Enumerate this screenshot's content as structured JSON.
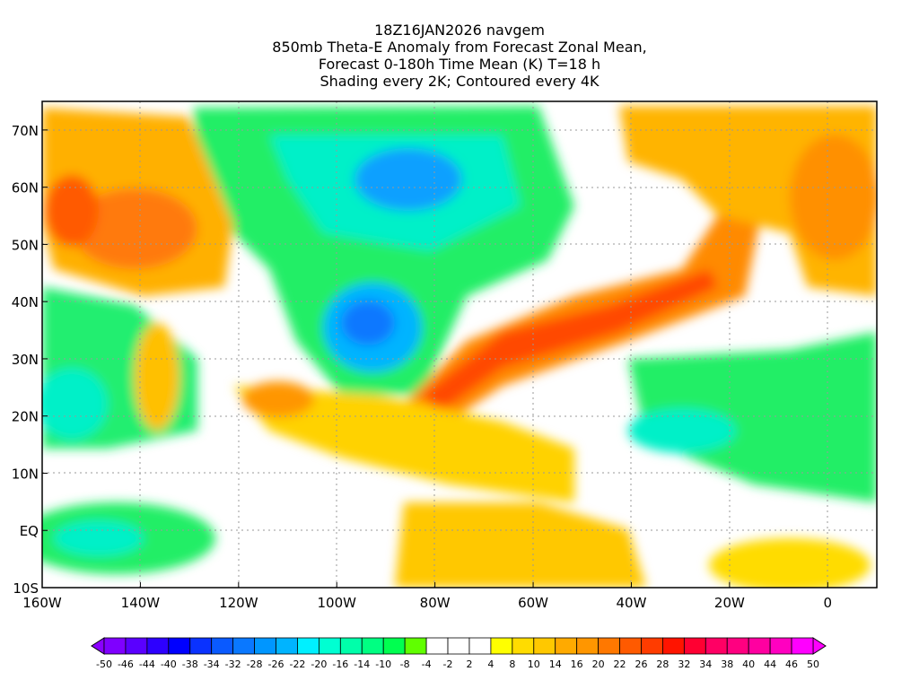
{
  "title": {
    "line1": "18Z16JAN2026 navgem",
    "line2": "850mb Theta-E Anomaly from Forecast Zonal Mean,",
    "line3": "Forecast 0-180h Time Mean (K) T=18 h",
    "line4": "Shading every 2K; Contoured every 4K"
  },
  "map": {
    "lon_range": [
      -160,
      10
    ],
    "lat_range": [
      -10,
      75
    ],
    "x_ticks": [
      {
        "lon": -160,
        "label": "160W"
      },
      {
        "lon": -140,
        "label": "140W"
      },
      {
        "lon": -120,
        "label": "120W"
      },
      {
        "lon": -100,
        "label": "100W"
      },
      {
        "lon": -80,
        "label": "80W"
      },
      {
        "lon": -60,
        "label": "60W"
      },
      {
        "lon": -40,
        "label": "40W"
      },
      {
        "lon": -20,
        "label": "20W"
      },
      {
        "lon": 0,
        "label": "0"
      }
    ],
    "y_ticks": [
      {
        "lat": 70,
        "label": "70N"
      },
      {
        "lat": 60,
        "label": "60N"
      },
      {
        "lat": 50,
        "label": "50N"
      },
      {
        "lat": 40,
        "label": "40N"
      },
      {
        "lat": 30,
        "label": "30N"
      },
      {
        "lat": 20,
        "label": "20N"
      },
      {
        "lat": 10,
        "label": "10N"
      },
      {
        "lat": 0,
        "label": "EQ"
      },
      {
        "lat": -10,
        "label": "10S"
      }
    ]
  },
  "colorbar": {
    "labels": [
      "-50",
      "-46",
      "-44",
      "-40",
      "-38",
      "-34",
      "-32",
      "-28",
      "-26",
      "-22",
      "-20",
      "-16",
      "-14",
      "-10",
      "-8",
      "-4",
      "-2",
      "2",
      "4",
      "8",
      "10",
      "14",
      "16",
      "20",
      "22",
      "26",
      "28",
      "32",
      "34",
      "38",
      "40",
      "44",
      "46",
      "50"
    ],
    "colors": [
      "#7f00ff",
      "#5a00ff",
      "#2d00ff",
      "#0000ff",
      "#0a32ff",
      "#0a5aff",
      "#0a78ff",
      "#0096ff",
      "#00b4ff",
      "#00f0ff",
      "#00ffd2",
      "#00ffaa",
      "#00ff82",
      "#00ff50",
      "#60ff00",
      "#ffffff",
      "#ffffff",
      "#ffffff",
      "#ffff00",
      "#ffdc00",
      "#ffc800",
      "#ffaa00",
      "#ff9600",
      "#ff7800",
      "#ff5a00",
      "#ff3c00",
      "#ff1400",
      "#ff0032",
      "#ff0064",
      "#ff0080",
      "#ff00a0",
      "#ff00c0",
      "#ff00ff"
    ],
    "low_color": "#8a00ff",
    "high_color": "#ff00ff"
  }
}
